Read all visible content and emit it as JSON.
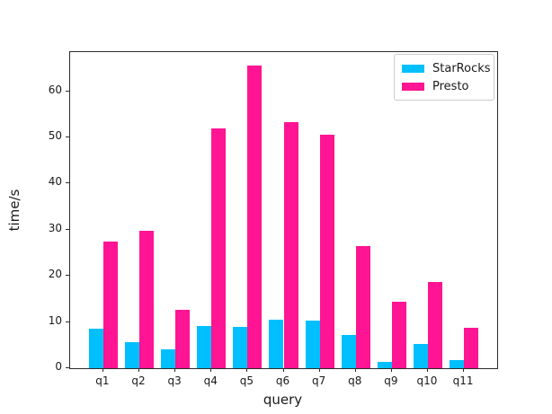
{
  "figure": {
    "background": "#ffffff",
    "title": ""
  },
  "chart_data": {
    "type": "bar",
    "title": "",
    "xlabel": "query",
    "ylabel": "time/s",
    "categories": [
      "q1",
      "q2",
      "q3",
      "q4",
      "q5",
      "q6",
      "q7",
      "q8",
      "q9",
      "q10",
      "q11"
    ],
    "series": [
      {
        "name": "StarRocks",
        "color": "#00BFFF",
        "values": [
          8.5,
          5.7,
          4.0,
          9.2,
          9.0,
          10.6,
          10.3,
          7.2,
          1.4,
          5.3,
          1.8
        ]
      },
      {
        "name": "Presto",
        "color": "#FF1493",
        "values": [
          27.4,
          29.7,
          12.6,
          51.9,
          65.6,
          53.3,
          50.6,
          26.4,
          14.4,
          18.6,
          8.8
        ]
      }
    ],
    "ylim": [
      0,
      68.5
    ],
    "yticks": [
      0,
      10,
      20,
      30,
      40,
      50,
      60
    ],
    "grid": false,
    "legend_position": "upper right",
    "bar_group_width_fraction": 0.8
  }
}
